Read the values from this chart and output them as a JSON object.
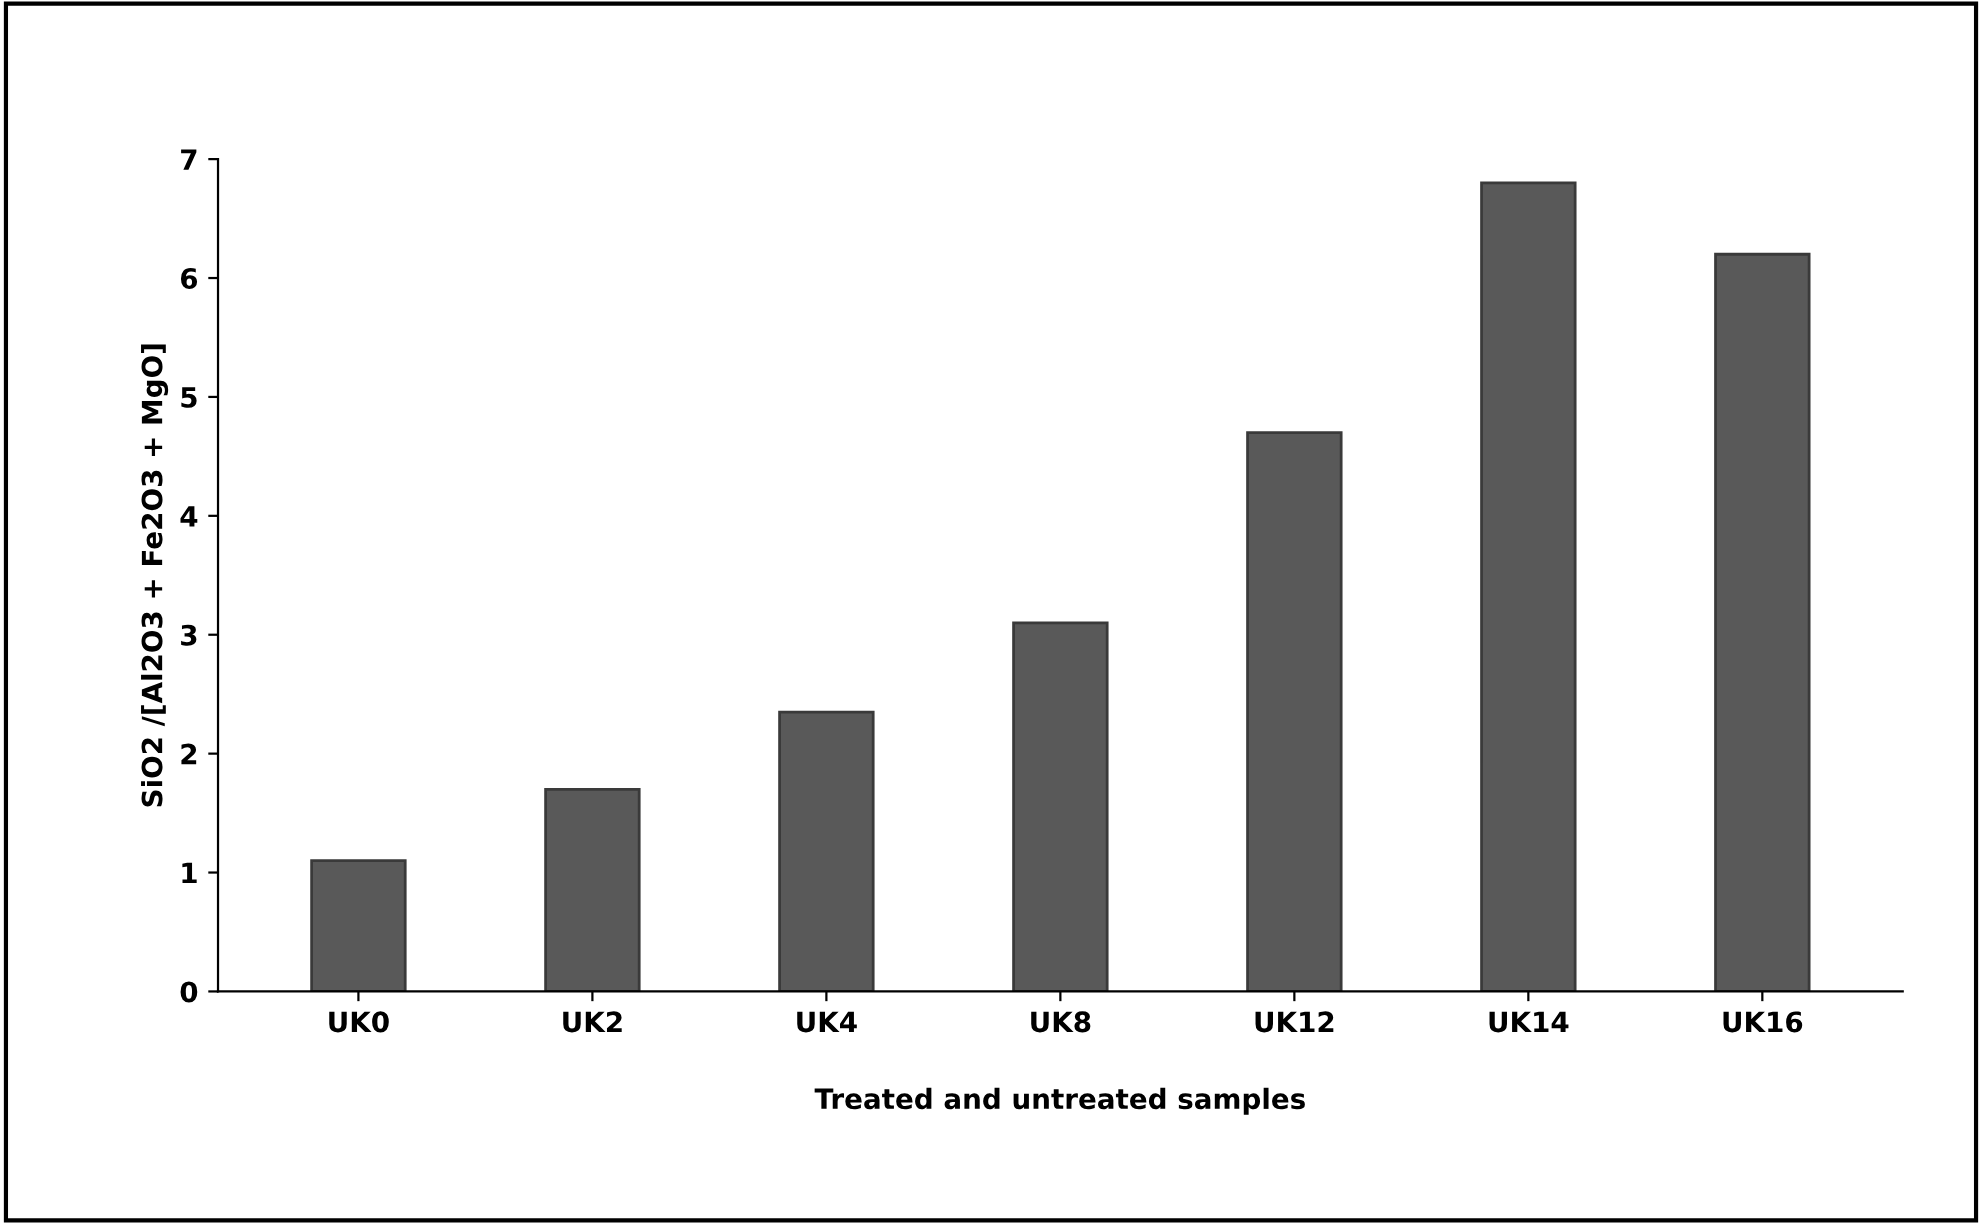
{
  "chart_data": {
    "type": "bar",
    "xlabel": "Treated and untreated samples",
    "ylabel": "SiO2 /[Al2O3 + Fe2O3 + MgO]",
    "categories": [
      "UK0",
      "UK2",
      "UK4",
      "UK8",
      "UK12",
      "UK14",
      "UK16"
    ],
    "values": [
      1.1,
      1.7,
      2.35,
      3.1,
      4.7,
      6.8,
      6.2
    ],
    "color": "#595959",
    "ylim": [
      0,
      7
    ],
    "yticks": [
      0,
      1,
      2,
      3,
      4,
      5,
      6,
      7
    ],
    "grid": false,
    "legend": false
  }
}
